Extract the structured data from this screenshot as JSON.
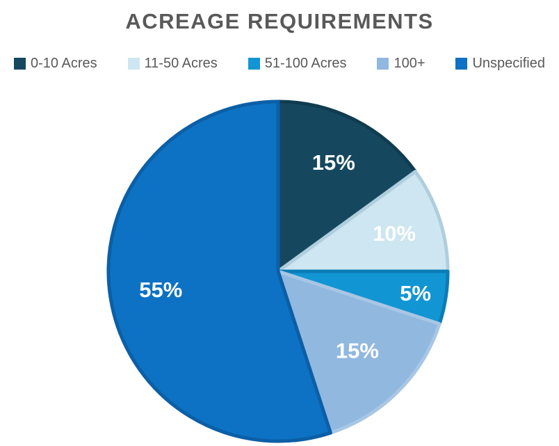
{
  "chart": {
    "title_color": "#595959",
    "legend_text_color": "#595959",
    "background_color": "#ffffff"
  },
  "chart_data": {
    "type": "pie",
    "title": "ACREAGE REQUIREMENTS",
    "categories": [
      "0-10 Acres",
      "11-50 Acres",
      "51-100 Acres",
      "100+",
      "Unspecified"
    ],
    "values": [
      15,
      10,
      5,
      15,
      55
    ],
    "unit": "%",
    "data_labels": [
      "15%",
      "10%",
      "5%",
      "15%",
      "55%"
    ],
    "data_label_color": "#ffffff",
    "slice_colors": [
      "#15485F",
      "#CEE6F1",
      "#1295D3",
      "#91B8DF",
      "#0D72C4"
    ],
    "slice_border_colors": [
      "#103C50",
      "#AFCEDD",
      "#0B7CB8",
      "#A8C6E5",
      "#0B5FA6"
    ],
    "legend_position": "top",
    "start_angle_deg": 0,
    "direction": "clockwise"
  }
}
